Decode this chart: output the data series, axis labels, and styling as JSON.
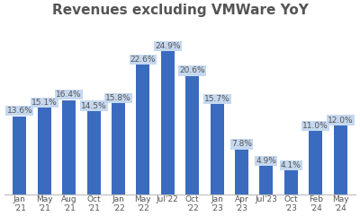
{
  "title": "Revenues excluding VMWare YoY",
  "categories": [
    "Jan\n'21",
    "May\n'21",
    "Aug\n'21",
    "Oct\n'21",
    "Jan\n'22",
    "May\n'22",
    "Jul'22",
    "Oct\n'22",
    "Jan\n'23",
    "Apr\n'23",
    "Jul'23",
    "Oct\n'23",
    "Feb\n'24",
    "May\n'24"
  ],
  "values": [
    13.6,
    15.1,
    16.4,
    14.5,
    15.8,
    22.6,
    24.9,
    20.6,
    15.7,
    7.8,
    4.9,
    4.1,
    11.0,
    12.0
  ],
  "bar_color": "#3a6bbf",
  "label_bg_color": "#c5d8ef",
  "label_text_color": "#555555",
  "title_fontsize": 11,
  "bar_label_fontsize": 6.5,
  "tick_fontsize": 6.5,
  "title_color": "#555555",
  "background_color": "#ffffff",
  "ylim": [
    0,
    30
  ],
  "bar_width": 0.55
}
